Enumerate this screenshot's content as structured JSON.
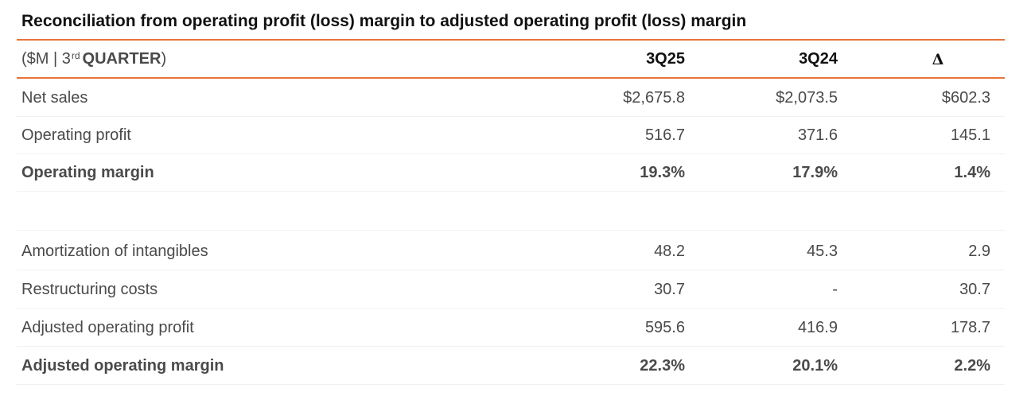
{
  "title": "Reconciliation from operating profit (loss) margin to adjusted operating profit (loss) margin",
  "header": {
    "unit_prefix": "($M | 3",
    "unit_sup": "rd",
    "unit_bold": "QUARTER",
    "unit_suffix": ")",
    "col1": "3Q25",
    "col2": "3Q24",
    "col3": "Δ"
  },
  "rows": [
    {
      "label": "Net sales",
      "v1": "$2,675.8",
      "v2": "$2,073.5",
      "v3": "$602.3",
      "bold": false
    },
    {
      "label": "Operating profit",
      "v1": "516.7",
      "v2": "371.6",
      "v3": "145.1",
      "bold": false
    },
    {
      "label": "Operating margin",
      "v1": "19.3%",
      "v2": "17.9%",
      "v3": "1.4%",
      "bold": true
    },
    {
      "label": "Amortization of intangibles",
      "v1": "48.2",
      "v2": "45.3",
      "v3": "2.9",
      "bold": false
    },
    {
      "label": "Restructuring costs",
      "v1": "30.7",
      "v2": "-",
      "v3": "30.7",
      "bold": false
    },
    {
      "label": "Adjusted operating profit",
      "v1": "595.6",
      "v2": "416.9",
      "v3": "178.7",
      "bold": false
    },
    {
      "label": "Adjusted operating margin",
      "v1": "22.3%",
      "v2": "20.1%",
      "v3": "2.2%",
      "bold": true
    }
  ],
  "colors": {
    "accent_rule": "#e8743b",
    "text": "#4a4a4a",
    "title": "#111111"
  }
}
